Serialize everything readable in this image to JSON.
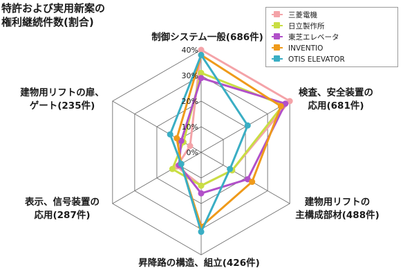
{
  "chart_data": {
    "type": "radar",
    "title": "特許および実用新案の\n権利継続件数(割合)",
    "axes": [
      "制御システム一般(686件)",
      "検査、安全装置の\n応用(681件)",
      "建物用リフトの\n主構成部材(488件)",
      "昇降路の構造、組立(426件)",
      "表示、信号装置の\n応用(287件)",
      "建物用リフトの扉、\nゲート(235件)"
    ],
    "ticks": [
      "0%",
      "10%",
      "20%",
      "30%",
      "40%"
    ],
    "range": [
      0,
      40
    ],
    "grid": true,
    "legend_position": "top-right",
    "series": [
      {
        "name": "三菱電機",
        "color": "#f4a3a8",
        "values": [
          40,
          40,
          14,
          13,
          11,
          5
        ]
      },
      {
        "name": "日立製作所",
        "color": "#c9de43",
        "values": [
          31,
          37,
          14,
          13,
          13,
          8
        ]
      },
      {
        "name": "東芝エレベータ",
        "color": "#b150c9",
        "values": [
          29,
          38,
          21,
          16,
          10,
          9
        ]
      },
      {
        "name": "INVENTIO",
        "color": "#ef9a1a",
        "values": [
          38,
          36,
          23,
          29,
          9,
          11
        ]
      },
      {
        "name": "OTIS ELEVATOR",
        "color": "#3aaec4",
        "values": [
          38,
          21,
          13,
          31,
          9,
          14
        ]
      }
    ]
  }
}
